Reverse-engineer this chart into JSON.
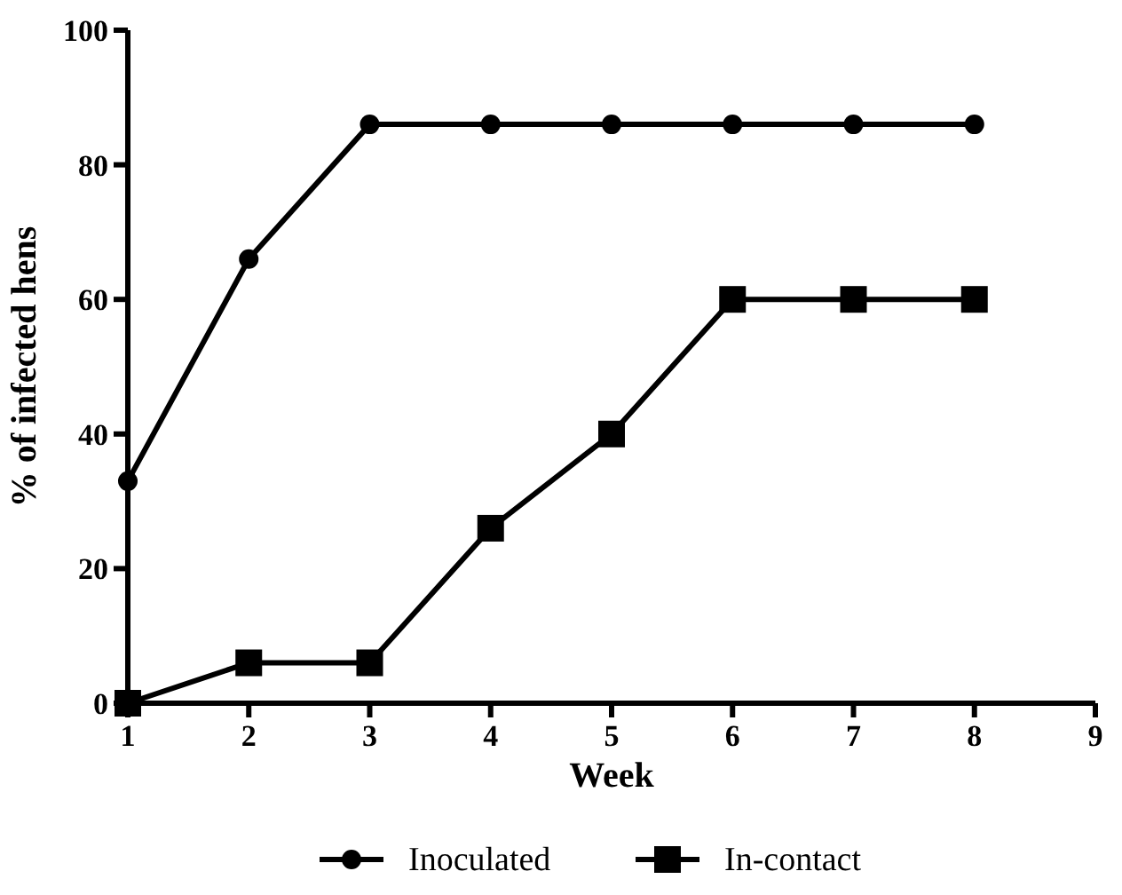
{
  "chart_data": {
    "type": "line",
    "xlabel": "Week",
    "ylabel": "% of infected hens",
    "x": [
      1,
      2,
      3,
      4,
      5,
      6,
      7,
      8
    ],
    "xlim": [
      1,
      9
    ],
    "xticks": [
      1,
      2,
      3,
      4,
      5,
      6,
      7,
      8,
      9
    ],
    "ylim": [
      0,
      100
    ],
    "yticks": [
      0,
      20,
      40,
      60,
      80,
      100
    ],
    "legend": "bottom",
    "grid": false,
    "line_style": "solid",
    "series": [
      {
        "name": "Inoculated",
        "color": "#000000",
        "marker": "circle",
        "values": [
          33,
          66,
          86,
          86,
          86,
          86,
          86,
          86
        ]
      },
      {
        "name": "In-contact",
        "color": "#000000",
        "marker": "square",
        "values": [
          0,
          6,
          6,
          26,
          40,
          60,
          60,
          60
        ]
      }
    ]
  }
}
